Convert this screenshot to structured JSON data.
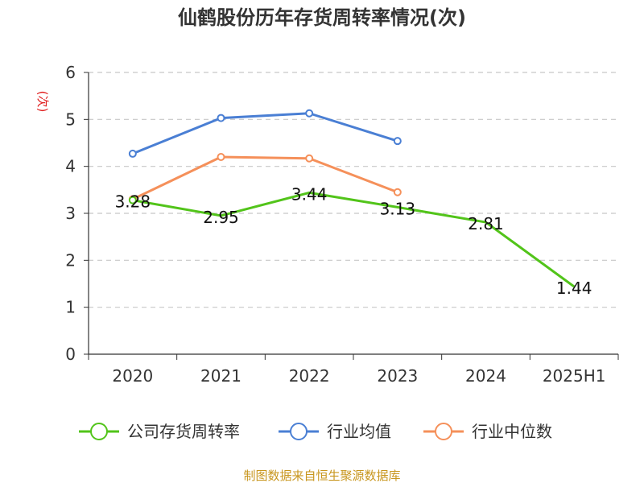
{
  "chart_data": {
    "type": "line",
    "title": "仙鹤股份历年存货周转率情况(次)",
    "ylabel": "(次)",
    "xlabel": "",
    "ylim": [
      0,
      6
    ],
    "yticks": [
      0,
      1,
      2,
      3,
      4,
      5,
      6
    ],
    "categories": [
      "2020",
      "2021",
      "2022",
      "2023",
      "2024",
      "2025H1"
    ],
    "grid": true,
    "legend_position": "bottom",
    "series": [
      {
        "name": "公司存货周转率",
        "color": "#52c41a",
        "values": [
          3.28,
          2.95,
          3.44,
          3.13,
          2.81,
          1.44
        ],
        "labels": [
          "3.28",
          "2.95",
          "3.44",
          "3.13",
          "2.81",
          "1.44"
        ],
        "markers": [
          true,
          false,
          false,
          false,
          false,
          false
        ]
      },
      {
        "name": "行业均值",
        "color": "#4a7fd4",
        "values": [
          4.27,
          5.03,
          5.13,
          4.54,
          null,
          null
        ],
        "markers": [
          true,
          true,
          true,
          true,
          false,
          false
        ]
      },
      {
        "name": "行业中位数",
        "color": "#f5905a",
        "values": [
          3.3,
          4.2,
          4.17,
          3.45,
          null,
          null
        ],
        "markers": [
          true,
          true,
          true,
          true,
          false,
          false
        ]
      }
    ]
  },
  "source_text": "制图数据来自恒生聚源数据库"
}
